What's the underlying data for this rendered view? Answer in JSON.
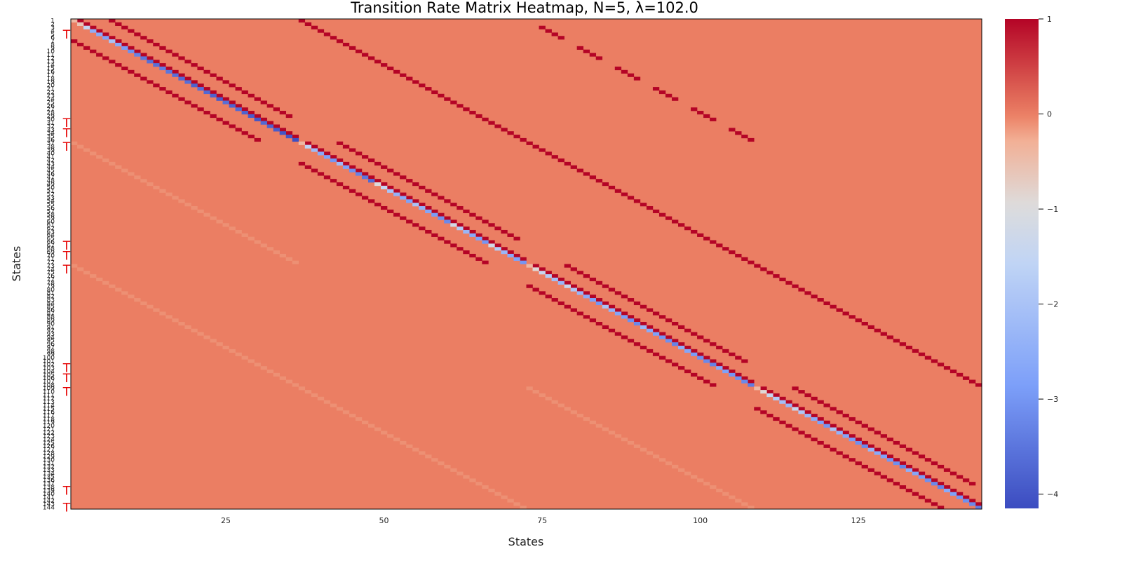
{
  "chart_data": {
    "type": "heatmap",
    "title": "Transition Rate Matrix Heatmap, N=5, λ=102.0",
    "xlabel": "States",
    "ylabel": "States",
    "n_states": 144,
    "x_ticks": [
      25,
      50,
      75,
      100,
      125
    ],
    "y_ticks": [
      1,
      2,
      3,
      4,
      5,
      6,
      7,
      8,
      9,
      10,
      11,
      12,
      13,
      14,
      15,
      16,
      17,
      18,
      19,
      20,
      21,
      22,
      23,
      24,
      25,
      26,
      27,
      28,
      29,
      30,
      31,
      32,
      33,
      34,
      35,
      36,
      37,
      38,
      39,
      40,
      41,
      42,
      43,
      44,
      45,
      46,
      47,
      48,
      49,
      50,
      51,
      52,
      53,
      54,
      55,
      56,
      57,
      58,
      59,
      60,
      61,
      62,
      63,
      64,
      65,
      66,
      67,
      68,
      69,
      70,
      71,
      72,
      73,
      74,
      75,
      76,
      77,
      78,
      79,
      80,
      81,
      82,
      83,
      84,
      85,
      86,
      87,
      88,
      89,
      90,
      91,
      92,
      93,
      94,
      95,
      96,
      97,
      98,
      99,
      100,
      101,
      102,
      103,
      104,
      105,
      106,
      107,
      108,
      109,
      110,
      111,
      112,
      113,
      114,
      115,
      116,
      117,
      118,
      119,
      120,
      121,
      122,
      123,
      124,
      125,
      126,
      127,
      128,
      129,
      130,
      131,
      132,
      133,
      134,
      135,
      136,
      137,
      138,
      139,
      140,
      141,
      142,
      143,
      144
    ],
    "y_marker_text": "T",
    "y_marked_states": [
      5,
      31,
      34,
      38,
      67,
      70,
      74,
      103,
      106,
      110,
      139,
      144
    ],
    "colorbar": {
      "min": -4.15,
      "max": 1.0,
      "ticks": [
        1,
        0,
        -1,
        -2,
        -3,
        -4
      ],
      "colormap": "coolwarm"
    },
    "background_value": 0.0,
    "colors": {
      "marker": "#e60000"
    },
    "cells": {
      "description_note": "",
      "diagonal_values": [
        -0.4,
        -0.6,
        -1.5,
        -2.5,
        -2.6,
        -2.8,
        -2.0,
        -2.6,
        -2.9,
        -3.1,
        -3.3,
        -3.5,
        -3.6,
        -3.6,
        -3.4,
        -3.5,
        -3.6,
        -3.7,
        -3.6,
        -3.8,
        -3.6,
        -3.7,
        -3.8,
        -3.9,
        -3.6,
        -3.8,
        -3.7,
        -3.8,
        -3.9,
        -4.0,
        -3.7,
        -3.8,
        -3.9,
        -4.0,
        -4.0,
        -4.1,
        -0.4,
        -1.6,
        -2.2,
        -2.6,
        -2.8,
        -3.0,
        -2.2,
        -2.8,
        -3.1,
        -3.3,
        -3.5,
        -3.7,
        -1.0,
        -1.5,
        -2.0,
        -2.4,
        -2.6,
        -2.8,
        -2.0,
        -2.4,
        -2.7,
        -2.9,
        -3.1,
        -3.2,
        -1.2,
        -1.8,
        -2.3,
        -2.6,
        -2.8,
        -3.0,
        -1.2,
        -1.8,
        -2.3,
        -2.6,
        -2.8,
        -3.0,
        -0.4,
        -0.9,
        -1.4,
        -1.8,
        -2.1,
        -2.3,
        -1.4,
        -1.9,
        -2.3,
        -2.6,
        -2.8,
        -3.0,
        -2.0,
        -2.4,
        -2.7,
        -2.9,
        -3.1,
        -3.2,
        -2.3,
        -2.6,
        -2.8,
        -3.0,
        -3.1,
        -3.3,
        -2.5,
        -2.7,
        -2.9,
        -3.1,
        -3.2,
        -3.3,
        -2.6,
        -2.8,
        -3.0,
        -3.1,
        -3.2,
        -3.4,
        -0.4,
        -0.9,
        -1.4,
        -1.8,
        -2.1,
        -2.3,
        -1.4,
        -1.9,
        -2.3,
        -2.6,
        -2.8,
        -3.0,
        -2.0,
        -2.4,
        -2.7,
        -2.9,
        -3.1,
        -3.2,
        -2.3,
        -2.6,
        -2.8,
        -3.0,
        -3.1,
        -3.3,
        -2.5,
        -2.7,
        -2.9,
        -3.1,
        -3.2,
        -3.3,
        -2.6,
        -2.8,
        -3.0,
        -3.1,
        -3.2,
        -3.4
      ],
      "positive_rate_value": 1.0,
      "faint_value": -0.1
    }
  }
}
